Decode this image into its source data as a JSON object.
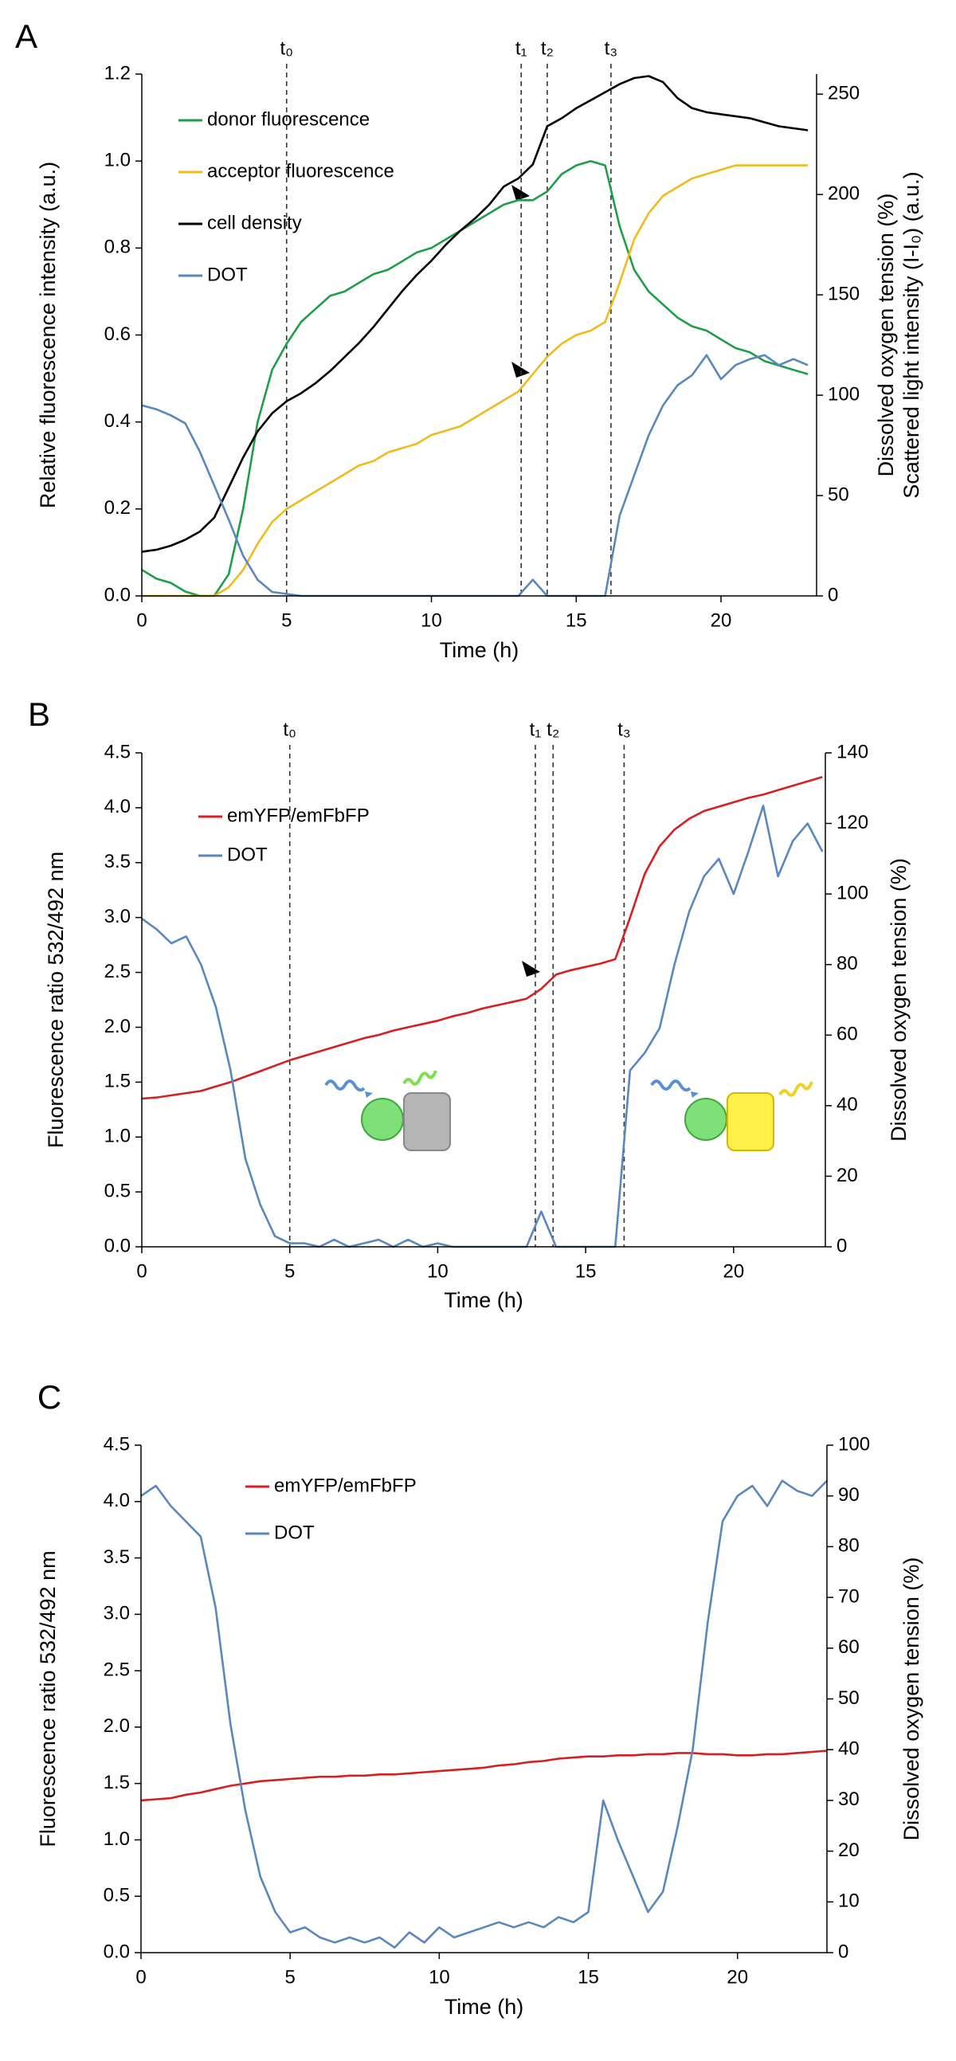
{
  "chart_data": [
    {
      "type": "line",
      "panel_label": "A",
      "xlabel": "Time (h)",
      "ylabel": "Relative fluorescence intensity (a.u.)",
      "y2label": [
        "Dissolved  oxygen tension (%)",
        "Scattered light intensity (I-I₀) (a.u.)"
      ],
      "xlim": [
        0,
        23.3
      ],
      "xticks": [
        0,
        5,
        10,
        15,
        20
      ],
      "ylim": [
        0,
        1.2
      ],
      "yticks": [
        {
          "value": 0,
          "label": "0.0"
        },
        0.2,
        0.4,
        0.6,
        0.8,
        {
          "value": 1,
          "label": "1.0"
        },
        1.2
      ],
      "y2lim": [
        0,
        260
      ],
      "y2ticks": [
        0,
        50,
        100,
        150,
        200,
        250
      ],
      "legend": "upper left",
      "annotations": [
        {
          "label": "t₀",
          "x": 5
        },
        {
          "label": "t₁",
          "x": 13.1
        },
        {
          "label": "t₂",
          "x": 14
        },
        {
          "label": "t₃",
          "x": 16.2
        }
      ],
      "x": [
        0,
        0.5,
        1,
        1.5,
        2,
        2.5,
        3,
        3.5,
        4,
        4.5,
        5,
        5.5,
        6,
        6.5,
        7,
        7.5,
        8,
        8.5,
        9,
        9.5,
        10,
        10.5,
        11,
        11.5,
        12,
        12.5,
        13,
        13.5,
        14,
        14.5,
        15,
        15.5,
        16,
        16.5,
        17,
        17.5,
        18,
        18.5,
        19,
        19.5,
        20,
        20.5,
        21,
        21.5,
        22,
        22.5,
        23
      ],
      "series": [
        {
          "name": "donor fluorescence",
          "color": "#1f9e4a",
          "axis": "y",
          "values": [
            0.06,
            0.04,
            0.03,
            0.01,
            0,
            0,
            0.05,
            0.2,
            0.4,
            0.52,
            0.58,
            0.63,
            0.66,
            0.69,
            0.7,
            0.72,
            0.74,
            0.75,
            0.77,
            0.79,
            0.8,
            0.82,
            0.84,
            0.86,
            0.88,
            0.9,
            0.91,
            0.91,
            0.93,
            0.97,
            0.99,
            1.0,
            0.99,
            0.85,
            0.75,
            0.7,
            0.67,
            0.64,
            0.62,
            0.61,
            0.59,
            0.57,
            0.56,
            0.54,
            0.53,
            0.52,
            0.51
          ]
        },
        {
          "name": "acceptor fluorescence",
          "color": "#efbb1c",
          "axis": "y",
          "values": [
            0,
            0,
            0,
            0,
            0,
            0,
            0.02,
            0.06,
            0.12,
            0.17,
            0.2,
            0.22,
            0.24,
            0.26,
            0.28,
            0.3,
            0.31,
            0.33,
            0.34,
            0.35,
            0.37,
            0.38,
            0.39,
            0.41,
            0.43,
            0.45,
            0.47,
            0.51,
            0.55,
            0.58,
            0.6,
            0.61,
            0.63,
            0.72,
            0.82,
            0.88,
            0.92,
            0.94,
            0.96,
            0.97,
            0.98,
            0.99,
            0.99,
            0.99,
            0.99,
            0.99,
            0.99
          ]
        },
        {
          "name": "cell density",
          "color": "#000000",
          "axis": "y2",
          "values": [
            22,
            23,
            25,
            28,
            32,
            39,
            54,
            69,
            82,
            91,
            97,
            101,
            106,
            112,
            119,
            126,
            134,
            143,
            152,
            160,
            167,
            175,
            182,
            188,
            195,
            204,
            208,
            215,
            234,
            238,
            243,
            247,
            251,
            255,
            258,
            259,
            256,
            248,
            243,
            241,
            240,
            239,
            238,
            236,
            234,
            233,
            232
          ]
        },
        {
          "name": "DOT",
          "color": "#5a87bd",
          "axis": "y2",
          "values": [
            95,
            93,
            90,
            86,
            72,
            55,
            38,
            20,
            8,
            2,
            1,
            0,
            0,
            0,
            0,
            0,
            0,
            0,
            0,
            0,
            0,
            0,
            0,
            0,
            0,
            0,
            0,
            8,
            0,
            0,
            0,
            0,
            0,
            40,
            60,
            80,
            95,
            105,
            110,
            120,
            108,
            115,
            118,
            120,
            115,
            118,
            115
          ]
        }
      ]
    },
    {
      "type": "line",
      "panel_label": "B",
      "xlabel": "Time (h)",
      "ylabel": "Fluorescence  ratio 532/492 nm",
      "y2label": "Dissolved  oxygen tension (%)",
      "xlim": [
        0,
        23.1
      ],
      "xticks": [
        0,
        5,
        10,
        15,
        20
      ],
      "ylim": [
        0,
        4.5
      ],
      "yticks": [
        {
          "value": 0,
          "label": "0.0"
        },
        0.5,
        {
          "value": 1,
          "label": "1.0"
        },
        1.5,
        {
          "value": 2,
          "label": "2.0"
        },
        2.5,
        {
          "value": 3,
          "label": "3.0"
        },
        3.5,
        {
          "value": 4,
          "label": "4.0"
        },
        4.5
      ],
      "y2lim": [
        0,
        140
      ],
      "y2ticks": [
        0,
        20,
        40,
        60,
        80,
        100,
        120,
        140
      ],
      "legend": "upper left",
      "annotations": [
        {
          "label": "t₀",
          "x": 5
        },
        {
          "label": "t₁",
          "x": 13.3
        },
        {
          "label": "t₂",
          "x": 13.9
        },
        {
          "label": "t₃",
          "x": 16.3
        }
      ],
      "x": [
        0,
        0.5,
        1,
        1.5,
        2,
        2.5,
        3,
        3.5,
        4,
        4.5,
        5,
        5.5,
        6,
        6.5,
        7,
        7.5,
        8,
        8.5,
        9,
        9.5,
        10,
        10.5,
        11,
        11.5,
        12,
        12.5,
        13,
        13.5,
        14,
        14.5,
        15,
        15.5,
        16,
        16.5,
        17,
        17.5,
        18,
        18.5,
        19,
        19.5,
        20,
        20.5,
        21,
        21.5,
        22,
        22.5,
        23
      ],
      "series": [
        {
          "name": "emYFP/emFbFP",
          "color": "#d42020",
          "axis": "y",
          "values": [
            1.35,
            1.36,
            1.38,
            1.4,
            1.42,
            1.46,
            1.5,
            1.55,
            1.6,
            1.65,
            1.7,
            1.74,
            1.78,
            1.82,
            1.86,
            1.9,
            1.93,
            1.97,
            2.0,
            2.03,
            2.06,
            2.1,
            2.13,
            2.17,
            2.2,
            2.23,
            2.26,
            2.35,
            2.48,
            2.52,
            2.55,
            2.58,
            2.62,
            3.0,
            3.4,
            3.65,
            3.8,
            3.9,
            3.97,
            4.01,
            4.05,
            4.09,
            4.12,
            4.16,
            4.2,
            4.24,
            4.28
          ]
        },
        {
          "name": "DOT",
          "color": "#5a87bd",
          "axis": "y2",
          "values": [
            93,
            90,
            86,
            88,
            80,
            68,
            50,
            25,
            12,
            3,
            1,
            1,
            0,
            2,
            0,
            1,
            2,
            0,
            2,
            0,
            1,
            0,
            0,
            0,
            0,
            0,
            0,
            10,
            0,
            0,
            0,
            0,
            0,
            50,
            55,
            62,
            80,
            95,
            105,
            110,
            100,
            112,
            125,
            105,
            115,
            120,
            112
          ]
        }
      ]
    },
    {
      "type": "line",
      "panel_label": "C",
      "xlabel": "Time (h)",
      "ylabel": "Fluorescence ratio 532/492 nm",
      "y2label": "Dissolved oxygen tension (%)",
      "xlim": [
        0,
        23
      ],
      "xticks": [
        0,
        5,
        10,
        15,
        20
      ],
      "ylim": [
        0,
        4.5
      ],
      "yticks": [
        {
          "value": 0,
          "label": "0.0"
        },
        0.5,
        {
          "value": 1,
          "label": "1.0"
        },
        1.5,
        {
          "value": 2,
          "label": "2.0"
        },
        2.5,
        {
          "value": 3,
          "label": "3.0"
        },
        3.5,
        {
          "value": 4,
          "label": "4.0"
        },
        4.5
      ],
      "y2lim": [
        0,
        100
      ],
      "y2ticks": [
        0,
        10,
        20,
        30,
        40,
        50,
        60,
        70,
        80,
        90,
        100
      ],
      "legend": "upper left",
      "x": [
        0,
        0.5,
        1,
        1.5,
        2,
        2.5,
        3,
        3.5,
        4,
        4.5,
        5,
        5.5,
        6,
        6.5,
        7,
        7.5,
        8,
        8.5,
        9,
        9.5,
        10,
        10.5,
        11,
        11.5,
        12,
        12.5,
        13,
        13.5,
        14,
        14.5,
        15,
        15.5,
        16,
        16.5,
        17,
        17.5,
        18,
        18.5,
        19,
        19.5,
        20,
        20.5,
        21,
        21.5,
        22,
        22.5,
        23
      ],
      "series": [
        {
          "name": "emYFP/emFbFP",
          "color": "#d42020",
          "axis": "y",
          "values": [
            1.35,
            1.36,
            1.37,
            1.4,
            1.42,
            1.45,
            1.48,
            1.5,
            1.52,
            1.53,
            1.54,
            1.55,
            1.56,
            1.56,
            1.57,
            1.57,
            1.58,
            1.58,
            1.59,
            1.6,
            1.61,
            1.62,
            1.63,
            1.64,
            1.66,
            1.67,
            1.69,
            1.7,
            1.72,
            1.73,
            1.74,
            1.74,
            1.75,
            1.75,
            1.76,
            1.76,
            1.77,
            1.77,
            1.76,
            1.76,
            1.75,
            1.75,
            1.76,
            1.76,
            1.77,
            1.78,
            1.79
          ]
        },
        {
          "name": "DOT",
          "color": "#5a87bd",
          "axis": "y2",
          "values": [
            90,
            92,
            88,
            85,
            82,
            68,
            45,
            28,
            15,
            8,
            4,
            5,
            3,
            2,
            3,
            2,
            3,
            1,
            4,
            2,
            5,
            3,
            4,
            5,
            6,
            5,
            6,
            5,
            7,
            6,
            8,
            30,
            22,
            15,
            8,
            12,
            25,
            40,
            65,
            85,
            90,
            92,
            88,
            93,
            91,
            90,
            93
          ]
        }
      ]
    }
  ]
}
